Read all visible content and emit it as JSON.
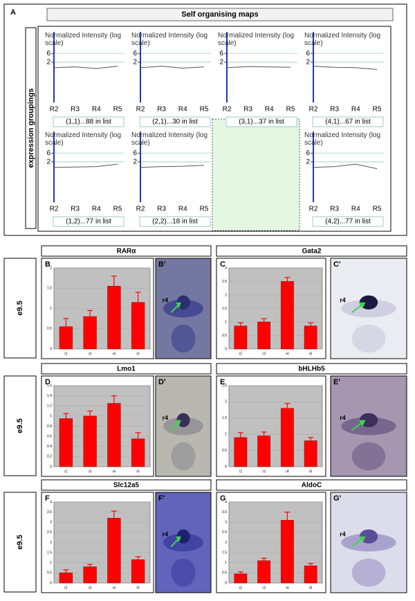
{
  "figure": {
    "panel_label": "A",
    "som_title": "Self organising maps",
    "som_side_label": "expression groupings",
    "row_labels": [
      "e9.5",
      "e9.5",
      "e9.5"
    ],
    "images": [
      {
        "label": "B'",
        "annotation": "r4"
      },
      {
        "label": "C'",
        "annotation": "r4"
      },
      {
        "label": "D'",
        "annotation": "r4"
      },
      {
        "label": "E'",
        "annotation": "r4"
      },
      {
        "label": "F'",
        "annotation": "r4"
      },
      {
        "label": "G'",
        "annotation": "r4"
      }
    ]
  },
  "chart_data": [
    {
      "type": "line",
      "title": "(1,1)...88 in list",
      "ylabel": "Normalized Intensity (log scale)",
      "categories": [
        "R2",
        "R3",
        "R4",
        "R5"
      ],
      "values": [
        1,
        1.1,
        0.9,
        1.2
      ],
      "color": "#555555",
      "log_scale": true,
      "ylim": [
        0.018,
        90
      ],
      "yticks": [
        2,
        6
      ],
      "grid": true
    },
    {
      "type": "line",
      "title": "(2,1)...30 in list",
      "ylabel": "Normalized Intensity (log scale)",
      "categories": [
        "R2",
        "R3",
        "R4",
        "R5"
      ],
      "values": [
        1,
        1.2,
        0.95,
        1.1
      ],
      "color": "#555555",
      "log_scale": true,
      "ylim": [
        0.018,
        90
      ],
      "yticks": [
        2,
        6
      ],
      "grid": true
    },
    {
      "type": "line",
      "title": "(3,1)...37 in list",
      "ylabel": "Normalized Intensity (log scale)",
      "categories": [
        "R2",
        "R3",
        "R4",
        "R5"
      ],
      "values": [
        1,
        1.15,
        1.1,
        1.05
      ],
      "color": "#555555",
      "log_scale": true,
      "ylim": [
        0.018,
        90
      ],
      "yticks": [
        2,
        6
      ],
      "grid": true
    },
    {
      "type": "line",
      "title": "(4,1)...67 in list",
      "ylabel": "Normalized Intensity (log scale)",
      "categories": [
        "R2",
        "R3",
        "R4",
        "R5"
      ],
      "values": [
        1.2,
        1.05,
        1,
        0.8
      ],
      "color": "#555555",
      "log_scale": true,
      "ylim": [
        0.018,
        90
      ],
      "yticks": [
        2,
        6
      ],
      "grid": true
    },
    {
      "type": "line",
      "title": "(1,2)...77 in list",
      "ylabel": "Normalized Intensity (log scale)",
      "categories": [
        "R2",
        "R3",
        "R4",
        "R5"
      ],
      "values": [
        1,
        1.05,
        1.1,
        1.5
      ],
      "color": "#555555",
      "log_scale": true,
      "ylim": [
        0.018,
        90
      ],
      "yticks": [
        2,
        6
      ],
      "grid": true
    },
    {
      "type": "line",
      "title": "(2,2)...18 in list",
      "ylabel": "Normalized Intensity (log scale)",
      "categories": [
        "R2",
        "R3",
        "R4",
        "R5"
      ],
      "values": [
        1,
        1.1,
        1.15,
        1.3
      ],
      "color": "#555555",
      "log_scale": true,
      "ylim": [
        0.018,
        90
      ],
      "yticks": [
        2,
        6
      ],
      "grid": true
    },
    {
      "type": "line",
      "title": "(4,2)...77 in list",
      "ylabel": "Normalized Intensity (log scale)",
      "categories": [
        "R2",
        "R3",
        "R4",
        "R5"
      ],
      "values": [
        1,
        1.1,
        1.5,
        0.85
      ],
      "color": "#555555",
      "log_scale": true,
      "ylim": [
        0.018,
        90
      ],
      "yticks": [
        2,
        6
      ],
      "grid": true
    },
    {
      "type": "bar",
      "panel": "B",
      "title": "RARα",
      "categories": [
        "r2",
        "r3",
        "r4",
        "r5"
      ],
      "values": [
        0.55,
        0.8,
        1.55,
        1.15
      ],
      "errors": [
        0.2,
        0.15,
        0.25,
        0.25
      ],
      "color": "#ff0000",
      "ylim": [
        0,
        2
      ],
      "yticks": [
        0,
        0.5,
        1,
        1.5,
        2
      ],
      "grid": true
    },
    {
      "type": "bar",
      "panel": "C",
      "title": "Gata2",
      "categories": [
        "r2",
        "r3",
        "r4",
        "r5"
      ],
      "values": [
        0.85,
        1.0,
        2.5,
        0.85
      ],
      "errors": [
        0.12,
        0.12,
        0.15,
        0.12
      ],
      "color": "#ff0000",
      "ylim": [
        0,
        3
      ],
      "yticks": [
        0,
        0.5,
        1,
        1.5,
        2,
        2.5,
        3
      ],
      "grid": true
    },
    {
      "type": "bar",
      "panel": "D",
      "title": "Lmo1",
      "categories": [
        "r2",
        "r3",
        "r4",
        "r5"
      ],
      "values": [
        0.95,
        1.0,
        1.25,
        0.55
      ],
      "errors": [
        0.1,
        0.1,
        0.15,
        0.12
      ],
      "color": "#ff0000",
      "ylim": [
        0,
        1.6
      ],
      "yticks": [
        0,
        0.2,
        0.4,
        0.6,
        0.8,
        1,
        1.2,
        1.4,
        1.6
      ],
      "grid": true
    },
    {
      "type": "bar",
      "panel": "E",
      "title": "bHLHb5",
      "categories": [
        "r2",
        "r3",
        "r4",
        "r5"
      ],
      "values": [
        0.9,
        0.95,
        1.8,
        0.8
      ],
      "errors": [
        0.15,
        0.12,
        0.15,
        0.1
      ],
      "color": "#ff0000",
      "ylim": [
        0,
        2.5
      ],
      "yticks": [
        0,
        0.5,
        1,
        1.5,
        2,
        2.5
      ],
      "grid": true
    },
    {
      "type": "bar",
      "panel": "F",
      "title": "Slc12a5",
      "categories": [
        "r2",
        "r3",
        "r4",
        "r5"
      ],
      "values": [
        0.5,
        0.8,
        3.2,
        1.15
      ],
      "errors": [
        0.15,
        0.12,
        0.35,
        0.15
      ],
      "color": "#ff0000",
      "ylim": [
        0,
        4
      ],
      "yticks": [
        0,
        0.5,
        1,
        1.5,
        2,
        2.5,
        3,
        3.5,
        4
      ],
      "grid": true
    },
    {
      "type": "bar",
      "panel": "G",
      "title": "AldoC",
      "categories": [
        "r2",
        "r3",
        "r4",
        "r5"
      ],
      "values": [
        0.45,
        1.1,
        3.1,
        0.85
      ],
      "errors": [
        0.1,
        0.12,
        0.4,
        0.12
      ],
      "color": "#ff0000",
      "ylim": [
        0,
        4
      ],
      "yticks": [
        0,
        0.5,
        1,
        1.5,
        2,
        2.5,
        3,
        3.5,
        4
      ],
      "grid": true
    }
  ]
}
